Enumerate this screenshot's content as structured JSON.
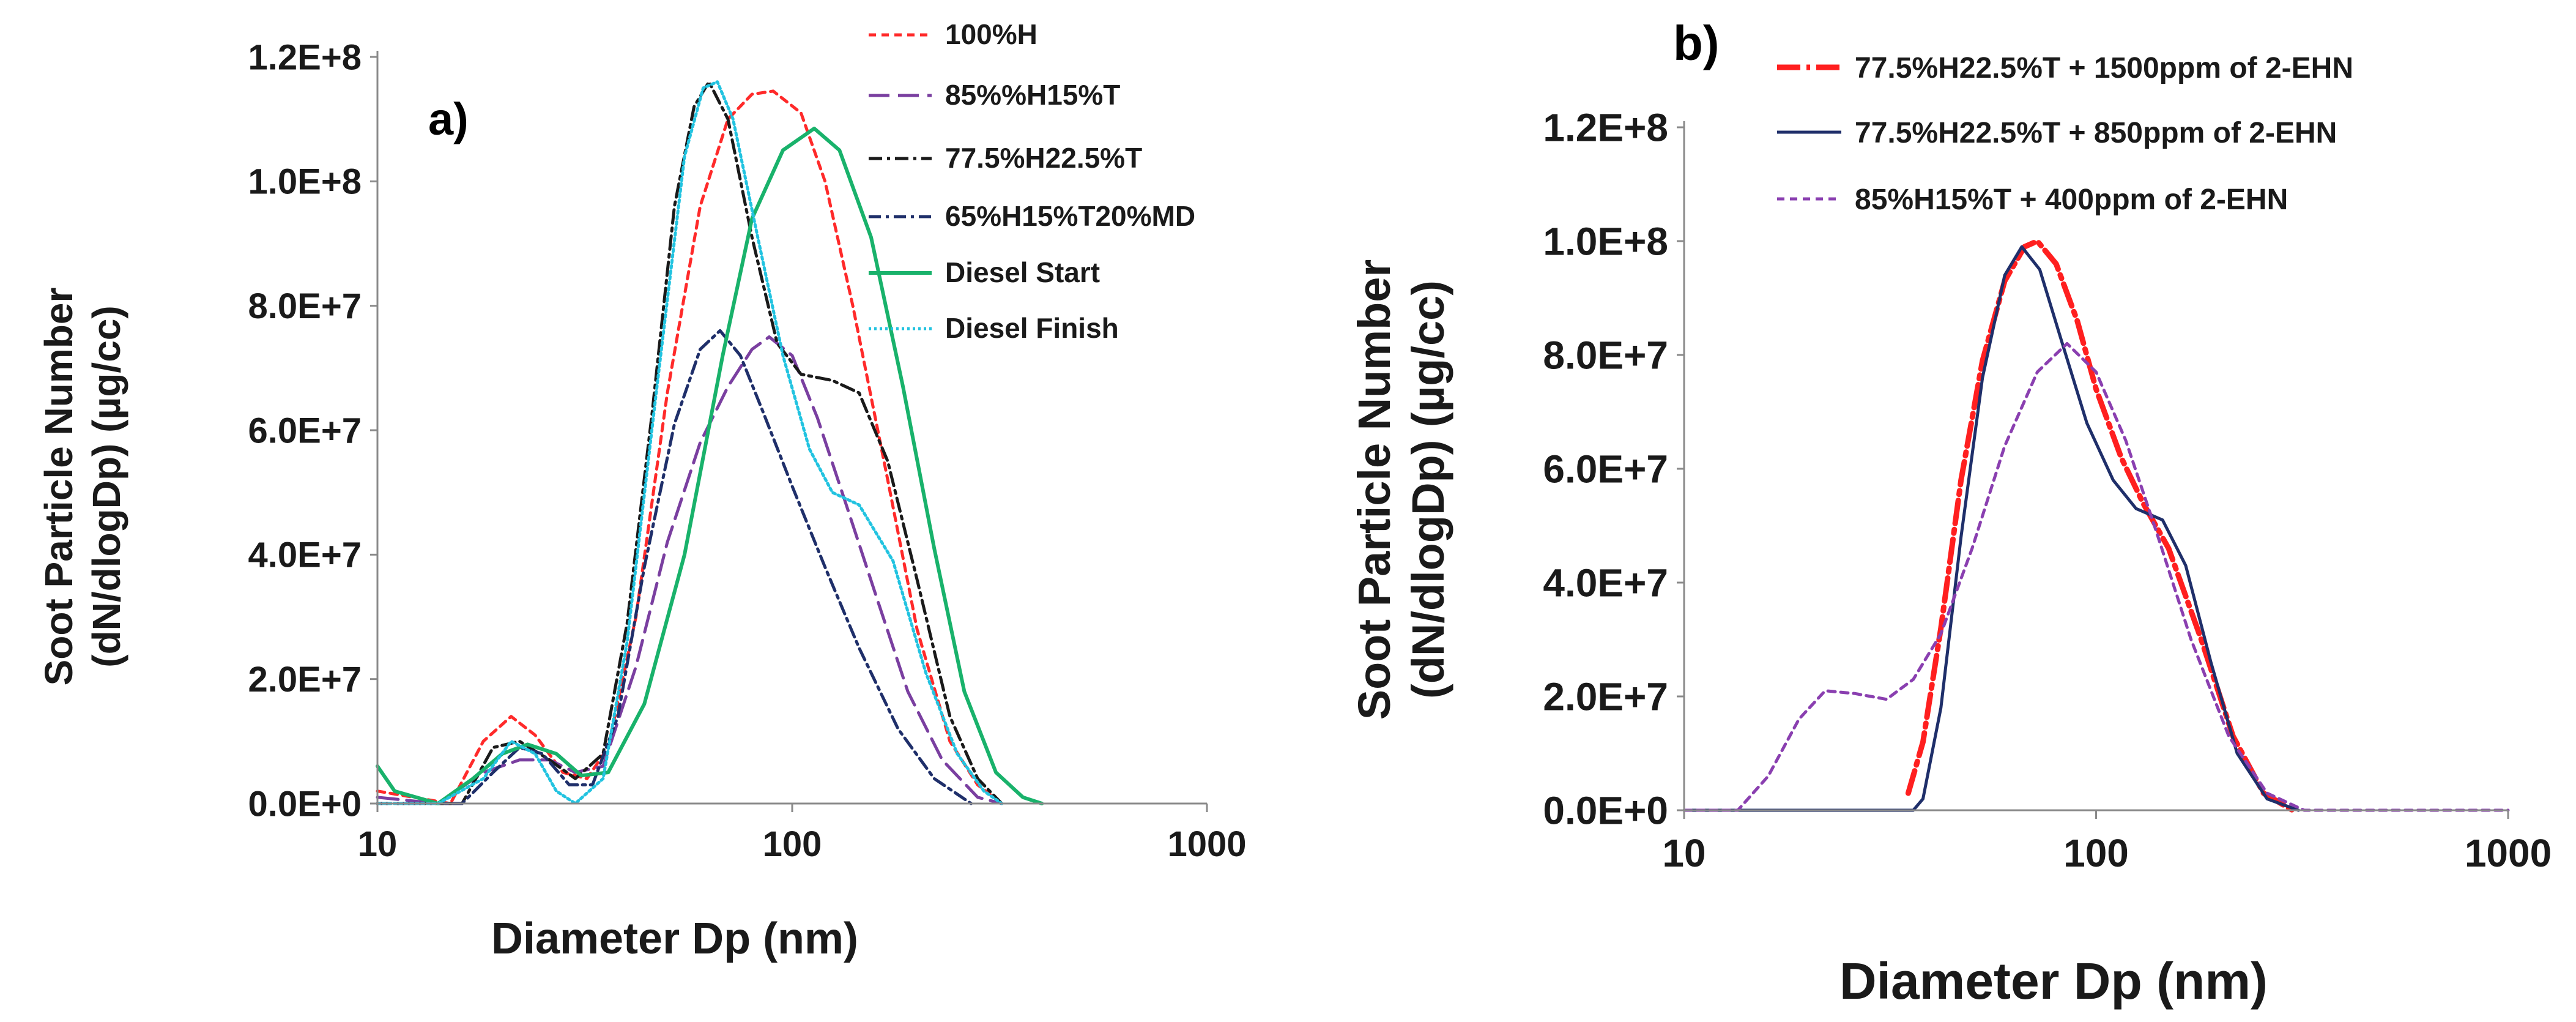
{
  "chart_data": [
    {
      "type": "line",
      "panel_label": "a)",
      "xlabel": "Diameter Dp  (nm)",
      "ylabel_line1": "Soot Particle Number",
      "ylabel_line2": "(dN/dlogDp) (µg/cc)",
      "x_scale": "log",
      "xlim": [
        10,
        1000
      ],
      "ylim": [
        0,
        120000000
      ],
      "x_ticks": [
        10,
        100,
        1000
      ],
      "x_tick_labels": [
        "10",
        "100",
        "1000"
      ],
      "y_ticks": [
        0,
        20000000,
        40000000,
        60000000,
        80000000,
        100000000,
        120000000
      ],
      "y_tick_labels": [
        "0.0E+0",
        "2.0E+7",
        "4.0E+7",
        "6.0E+7",
        "8.0E+7",
        "1.0E+8",
        "1.2E+8"
      ],
      "grid": false,
      "legend_position": "top-right",
      "series": [
        {
          "name": "100%H",
          "color": "#ff2a2a",
          "dash": "12,9",
          "width": 5,
          "points": [
            [
              10,
              2000000.0
            ],
            [
              15,
              0
            ],
            [
              18,
              10000000.0
            ],
            [
              21,
              14000000.0
            ],
            [
              24,
              11000000.0
            ],
            [
              28,
              5000000.0
            ],
            [
              32,
              4000000.0
            ],
            [
              36,
              9000000.0
            ],
            [
              42,
              30000000.0
            ],
            [
              50,
              66000000.0
            ],
            [
              60,
              96000000.0
            ],
            [
              70,
              110000000.0
            ],
            [
              80,
              114000000.0
            ],
            [
              90,
              114500000.0
            ],
            [
              105,
              111000000.0
            ],
            [
              120,
              100000000.0
            ],
            [
              140,
              80000000.0
            ],
            [
              170,
              52000000.0
            ],
            [
              200,
              28000000.0
            ],
            [
              240,
              10000000.0
            ],
            [
              280,
              3000000.0
            ],
            [
              320,
              0
            ]
          ]
        },
        {
          "name": "85%%H15%T",
          "color": "#7a3fa0",
          "dash": "34,14",
          "width": 5,
          "points": [
            [
              10,
              1000000.0
            ],
            [
              14,
              0
            ],
            [
              18,
              5000000.0
            ],
            [
              22,
              7000000.0
            ],
            [
              26,
              7000000.0
            ],
            [
              30,
              5000000.0
            ],
            [
              35,
              6000000.0
            ],
            [
              42,
              22000000.0
            ],
            [
              50,
              42000000.0
            ],
            [
              60,
              58000000.0
            ],
            [
              70,
              67000000.0
            ],
            [
              80,
              73000000.0
            ],
            [
              88,
              75000000.0
            ],
            [
              100,
              72000000.0
            ],
            [
              115,
              62000000.0
            ],
            [
              135,
              48000000.0
            ],
            [
              160,
              33000000.0
            ],
            [
              190,
              18000000.0
            ],
            [
              230,
              7000000.0
            ],
            [
              280,
              1000000.0
            ],
            [
              320,
              0
            ]
          ]
        },
        {
          "name": "77.5%H22.5%T",
          "color": "#1a1a1a",
          "dash": "22,8,5,8",
          "width": 5,
          "points": [
            [
              10,
              0
            ],
            [
              16,
              0
            ],
            [
              19,
              9000000.0
            ],
            [
              22,
              10000000.0
            ],
            [
              26,
              7000000.0
            ],
            [
              30,
              4000000.0
            ],
            [
              35,
              8000000.0
            ],
            [
              40,
              29000000.0
            ],
            [
              46,
              63000000.0
            ],
            [
              52,
              96000000.0
            ],
            [
              58,
              112000000.0
            ],
            [
              63,
              116000000.0
            ],
            [
              70,
              110000000.0
            ],
            [
              80,
              91000000.0
            ],
            [
              92,
              74000000.0
            ],
            [
              105,
              69000000.0
            ],
            [
              125,
              68000000.0
            ],
            [
              145,
              66000000.0
            ],
            [
              170,
              55000000.0
            ],
            [
              200,
              36000000.0
            ],
            [
              240,
              14000000.0
            ],
            [
              280,
              4000000.0
            ],
            [
              320,
              0
            ]
          ]
        },
        {
          "name": "65%H15%T20%MD",
          "color": "#1f2f6a",
          "dash": "20,8,5,8",
          "width": 5,
          "points": [
            [
              10,
              0
            ],
            [
              16,
              0
            ],
            [
              19,
              5000000.0
            ],
            [
              22,
              9000000.0
            ],
            [
              25,
              8000000.0
            ],
            [
              29,
              3000000.0
            ],
            [
              33,
              3000000.0
            ],
            [
              38,
              14000000.0
            ],
            [
              44,
              38000000.0
            ],
            [
              52,
              61000000.0
            ],
            [
              60,
              73000000.0
            ],
            [
              67,
              76000000.0
            ],
            [
              75,
              72000000.0
            ],
            [
              85,
              63000000.0
            ],
            [
              100,
              51000000.0
            ],
            [
              120,
              38000000.0
            ],
            [
              145,
              25000000.0
            ],
            [
              180,
              12000000.0
            ],
            [
              220,
              4000000.0
            ],
            [
              270,
              0
            ]
          ]
        },
        {
          "name": "Diesel Start",
          "color": "#19b26b",
          "dash": "",
          "width": 6,
          "points": [
            [
              10,
              6000000.0
            ],
            [
              11,
              2000000.0
            ],
            [
              14,
              0
            ],
            [
              17,
              4000000.0
            ],
            [
              20,
              8000000.0
            ],
            [
              23,
              9500000.0
            ],
            [
              27,
              8000000.0
            ],
            [
              31,
              4500000.0
            ],
            [
              36,
              5000000.0
            ],
            [
              44,
              16000000.0
            ],
            [
              55,
              40000000.0
            ],
            [
              68,
              72000000.0
            ],
            [
              80,
              94000000.0
            ],
            [
              95,
              105000000.0
            ],
            [
              113,
              108500000.0
            ],
            [
              130,
              105000000.0
            ],
            [
              155,
              91000000.0
            ],
            [
              185,
              67000000.0
            ],
            [
              220,
              41000000.0
            ],
            [
              260,
              18000000.0
            ],
            [
              310,
              5000000.0
            ],
            [
              360,
              1000000.0
            ],
            [
              400,
              0
            ]
          ]
        },
        {
          "name": "Diesel Finish",
          "color": "#22c3e0",
          "dash": "4,5",
          "width": 5,
          "points": [
            [
              10,
              0
            ],
            [
              14,
              0
            ],
            [
              18,
              4000000.0
            ],
            [
              21,
              10000000.0
            ],
            [
              24,
              8000000.0
            ],
            [
              27,
              2000000.0
            ],
            [
              30,
              0
            ],
            [
              35,
              4000000.0
            ],
            [
              40,
              26000000.0
            ],
            [
              47,
              66000000.0
            ],
            [
              55,
              104000000.0
            ],
            [
              61,
              115000000.0
            ],
            [
              66,
              116000000.0
            ],
            [
              72,
              110000000.0
            ],
            [
              82,
              92000000.0
            ],
            [
              95,
              72000000.0
            ],
            [
              110,
              57000000.0
            ],
            [
              125,
              50000000.0
            ],
            [
              145,
              48000000.0
            ],
            [
              175,
              39000000.0
            ],
            [
              210,
              21000000.0
            ],
            [
              250,
              8000000.0
            ],
            [
              290,
              2000000.0
            ],
            [
              320,
              0
            ]
          ]
        }
      ]
    },
    {
      "type": "line",
      "panel_label": "b)",
      "xlabel": "Diameter Dp  (nm)",
      "ylabel_line1": "Soot Particle Number",
      "ylabel_line2": "(dN/dlogDp) (µg/cc)",
      "x_scale": "log",
      "xlim": [
        10,
        1000
      ],
      "ylim": [
        0,
        120000000
      ],
      "x_ticks": [
        10,
        100,
        1000
      ],
      "x_tick_labels": [
        "10",
        "100",
        "1000"
      ],
      "y_ticks": [
        0,
        20000000,
        40000000,
        60000000,
        80000000,
        100000000,
        120000000
      ],
      "y_tick_labels": [
        "0.0E+0",
        "2.0E+7",
        "4.0E+7",
        "6.0E+7",
        "8.0E+7",
        "1.0E+8",
        "1.2E+8"
      ],
      "grid": false,
      "legend_position": "top",
      "series": [
        {
          "name": "77.5%H22.5%T + 1500ppm of 2-EHN",
          "color": "#ff1f1f",
          "dash": "38,10,6,10",
          "width": 9,
          "points": [
            [
              35,
              3000000.0
            ],
            [
              38,
              12000000.0
            ],
            [
              42,
              32000000.0
            ],
            [
              47,
              58000000.0
            ],
            [
              53,
              79000000.0
            ],
            [
              60,
              93000000.0
            ],
            [
              67,
              99000000.0
            ],
            [
              72,
              100000000.0
            ],
            [
              80,
              96000000.0
            ],
            [
              90,
              86000000.0
            ],
            [
              100,
              74000000.0
            ],
            [
              115,
              62000000.0
            ],
            [
              130,
              54000000.0
            ],
            [
              150,
              46000000.0
            ],
            [
              180,
              30000000.0
            ],
            [
              215,
              13000000.0
            ],
            [
              255,
              3000000.0
            ],
            [
              300,
              0
            ]
          ]
        },
        {
          "name": "77.5%H22.5%T + 850ppm of 2-EHN",
          "color": "#1f2f6a",
          "dash": "",
          "width": 5,
          "points": [
            [
              10,
              0
            ],
            [
              36,
              0
            ],
            [
              38,
              2000000.0
            ],
            [
              42,
              18000000.0
            ],
            [
              47,
              48000000.0
            ],
            [
              53,
              76000000.0
            ],
            [
              60,
              94000000.0
            ],
            [
              66,
              99000000.0
            ],
            [
              73,
              95000000.0
            ],
            [
              82,
              83000000.0
            ],
            [
              95,
              68000000.0
            ],
            [
              110,
              58000000.0
            ],
            [
              125,
              53000000.0
            ],
            [
              145,
              51000000.0
            ],
            [
              165,
              43000000.0
            ],
            [
              190,
              26000000.0
            ],
            [
              220,
              10000000.0
            ],
            [
              260,
              2000000.0
            ],
            [
              310,
              0
            ]
          ]
        },
        {
          "name": "85%H15%T + 400ppm of 2-EHN",
          "color": "#8a3fb0",
          "dash": "12,9",
          "width": 5,
          "points": [
            [
              10,
              0
            ],
            [
              13.5,
              0
            ],
            [
              16,
              6000000.0
            ],
            [
              19,
              16000000.0
            ],
            [
              22,
              21000000.0
            ],
            [
              26,
              20500000.0
            ],
            [
              31,
              19500000.0
            ],
            [
              36,
              23000000.0
            ],
            [
              42,
              31000000.0
            ],
            [
              50,
              46000000.0
            ],
            [
              60,
              64000000.0
            ],
            [
              72,
              77000000.0
            ],
            [
              85,
              82000000.0
            ],
            [
              100,
              77000000.0
            ],
            [
              118,
              65000000.0
            ],
            [
              140,
              49000000.0
            ],
            [
              170,
              30000000.0
            ],
            [
              210,
              13000000.0
            ],
            [
              260,
              3000000.0
            ],
            [
              320,
              0
            ],
            [
              1000,
              0
            ]
          ]
        }
      ]
    }
  ]
}
